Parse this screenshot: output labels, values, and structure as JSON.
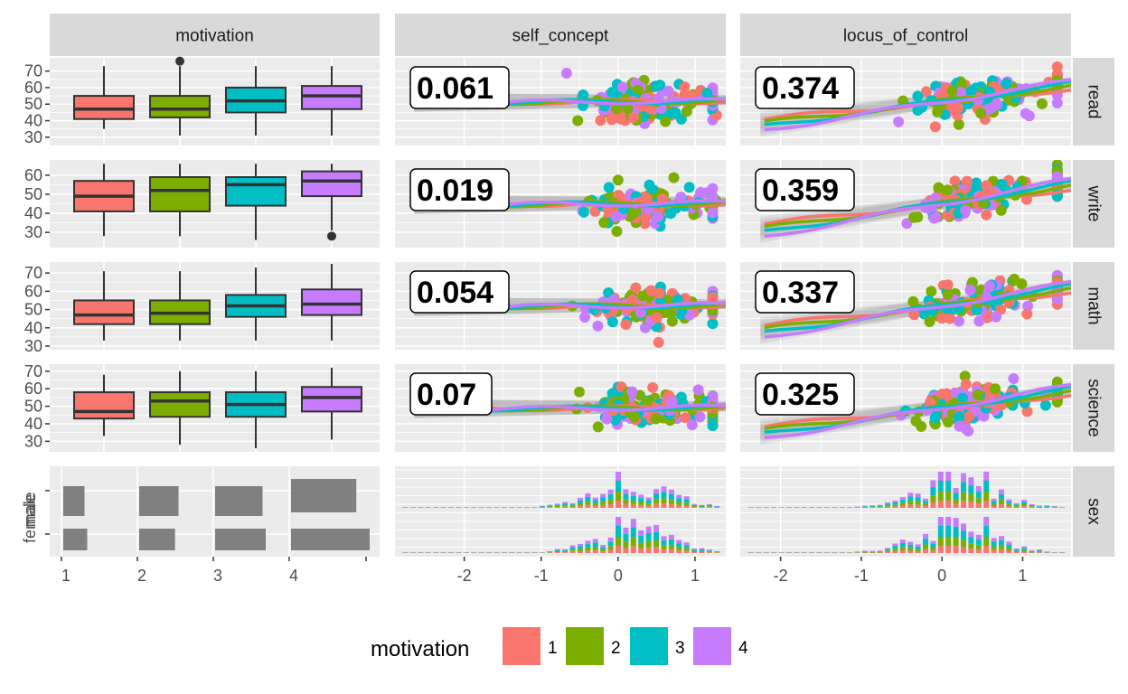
{
  "chart_data": {
    "type": "pairs",
    "columns": [
      "motivation",
      "self_concept",
      "locus_of_control"
    ],
    "rows": [
      "read",
      "write",
      "math",
      "science",
      "sex"
    ],
    "box_categories": [
      "1",
      "2",
      "3",
      "4"
    ],
    "boxplots": {
      "read": [
        [
          35,
          41,
          47,
          55,
          73,
          []
        ],
        [
          31,
          42,
          47,
          55,
          73,
          [
            76
          ]
        ],
        [
          31,
          45,
          52,
          60,
          73,
          []
        ],
        [
          31,
          47,
          55,
          61,
          73,
          []
        ]
      ],
      "write": [
        [
          28,
          41,
          49,
          57,
          66,
          []
        ],
        [
          28,
          41,
          52,
          59,
          66,
          []
        ],
        [
          26,
          44,
          55,
          59,
          66,
          []
        ],
        [
          31,
          49,
          57,
          62,
          66,
          [
            28
          ]
        ]
      ],
      "math": [
        [
          33,
          42,
          47,
          55,
          71,
          []
        ],
        [
          33,
          42,
          48,
          55,
          71,
          []
        ],
        [
          33,
          46,
          52,
          58,
          73,
          []
        ],
        [
          33,
          47,
          53,
          61,
          75,
          []
        ]
      ],
      "science": [
        [
          33,
          43,
          47,
          58,
          68,
          []
        ],
        [
          28,
          44,
          53,
          58,
          70,
          []
        ],
        [
          26,
          44,
          51,
          58,
          70,
          []
        ],
        [
          31,
          47,
          55,
          61,
          72,
          []
        ]
      ]
    },
    "correlations": {
      "self_concept": {
        "read": "0.061",
        "write": "0.019",
        "math": "0.054",
        "science": "0.07"
      },
      "locus_of_control": {
        "read": "0.374",
        "write": "0.359",
        "math": "0.337",
        "science": "0.325"
      }
    },
    "sex_levels": [
      "female",
      "male"
    ],
    "sex_bar_fractions": {
      "male": [
        0.47,
        0.68,
        0.75,
        0.83
      ],
      "female": [
        0.53,
        0.62,
        0.8,
        1.0
      ]
    },
    "y_axis": {
      "read": {
        "range": [
          25,
          78
        ],
        "ticks": [
          "30",
          "40",
          "50",
          "60",
          "70"
        ]
      },
      "write": {
        "range": [
          22,
          68
        ],
        "ticks": [
          "30",
          "40",
          "50",
          "60"
        ]
      },
      "math": {
        "range": [
          28,
          76
        ],
        "ticks": [
          "30",
          "40",
          "50",
          "60",
          "70"
        ]
      },
      "science": {
        "range": [
          24,
          74
        ],
        "ticks": [
          "30",
          "40",
          "50",
          "60",
          "70"
        ]
      }
    },
    "x_axis": {
      "motivation": {
        "ticks": [
          "1",
          "2",
          "3",
          "4"
        ]
      },
      "self_concept": {
        "range": [
          -2.9,
          1.4
        ],
        "ticks": [
          "-2",
          "-1",
          "0",
          "1"
        ]
      },
      "locus_of_control": {
        "range": [
          -2.5,
          1.6
        ],
        "ticks": [
          "-2",
          "-1",
          "0",
          "1"
        ]
      }
    },
    "legend": {
      "title": "motivation",
      "entries": [
        "1",
        "2",
        "3",
        "4"
      ],
      "placement": "bottom"
    }
  },
  "colors": {
    "1": "#F8766D",
    "2": "#7CAE00",
    "3": "#00BFC4",
    "4": "#C77CFF",
    "panel_bg": "#EBEBEB",
    "strip_bg": "#D9D9D9",
    "sex_bar": "#808080"
  }
}
